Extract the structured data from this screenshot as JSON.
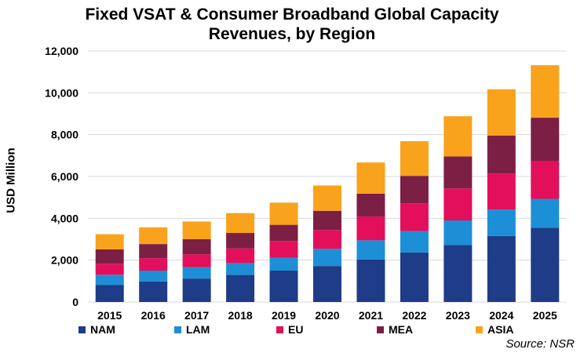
{
  "chart_data": {
    "type": "bar",
    "stacked": true,
    "title_line1": "Fixed VSAT & Consumer Broadband Global Capacity",
    "title_line2": "Revenues, by Region",
    "xlabel": "",
    "ylabel": "USD Million",
    "ylim": [
      0,
      12000
    ],
    "yticks": [
      0,
      2000,
      4000,
      6000,
      8000,
      10000,
      12000
    ],
    "ytick_labels": [
      "0",
      "2,000",
      "4,000",
      "6,000",
      "8,000",
      "10,000",
      "12,000"
    ],
    "grid": true,
    "legend_position": "bottom",
    "categories": [
      "2015",
      "2016",
      "2017",
      "2018",
      "2019",
      "2020",
      "2021",
      "2022",
      "2023",
      "2024",
      "2025"
    ],
    "series": [
      {
        "name": "NAM",
        "color": "#1f3c88",
        "values": [
          820,
          980,
          1120,
          1300,
          1500,
          1720,
          2030,
          2370,
          2730,
          3160,
          3550
        ]
      },
      {
        "name": "LAM",
        "color": "#1c8fd6",
        "values": [
          480,
          520,
          540,
          560,
          620,
          820,
          920,
          1020,
          1170,
          1260,
          1380
        ]
      },
      {
        "name": "EU",
        "color": "#e30f5a",
        "values": [
          530,
          590,
          620,
          700,
          800,
          900,
          1140,
          1330,
          1530,
          1720,
          1820
        ]
      },
      {
        "name": "MEA",
        "color": "#7c1f45",
        "values": [
          690,
          680,
          720,
          740,
          770,
          920,
          1090,
          1310,
          1530,
          1820,
          2060
        ]
      },
      {
        "name": "ASIA",
        "color": "#f9a21b",
        "values": [
          720,
          800,
          850,
          950,
          1060,
          1210,
          1490,
          1660,
          1920,
          2210,
          2510
        ]
      }
    ],
    "legend_labels": [
      "NAM",
      "LAM",
      "EU",
      "MEA",
      "ASIA"
    ],
    "source": "Source: NSR"
  }
}
